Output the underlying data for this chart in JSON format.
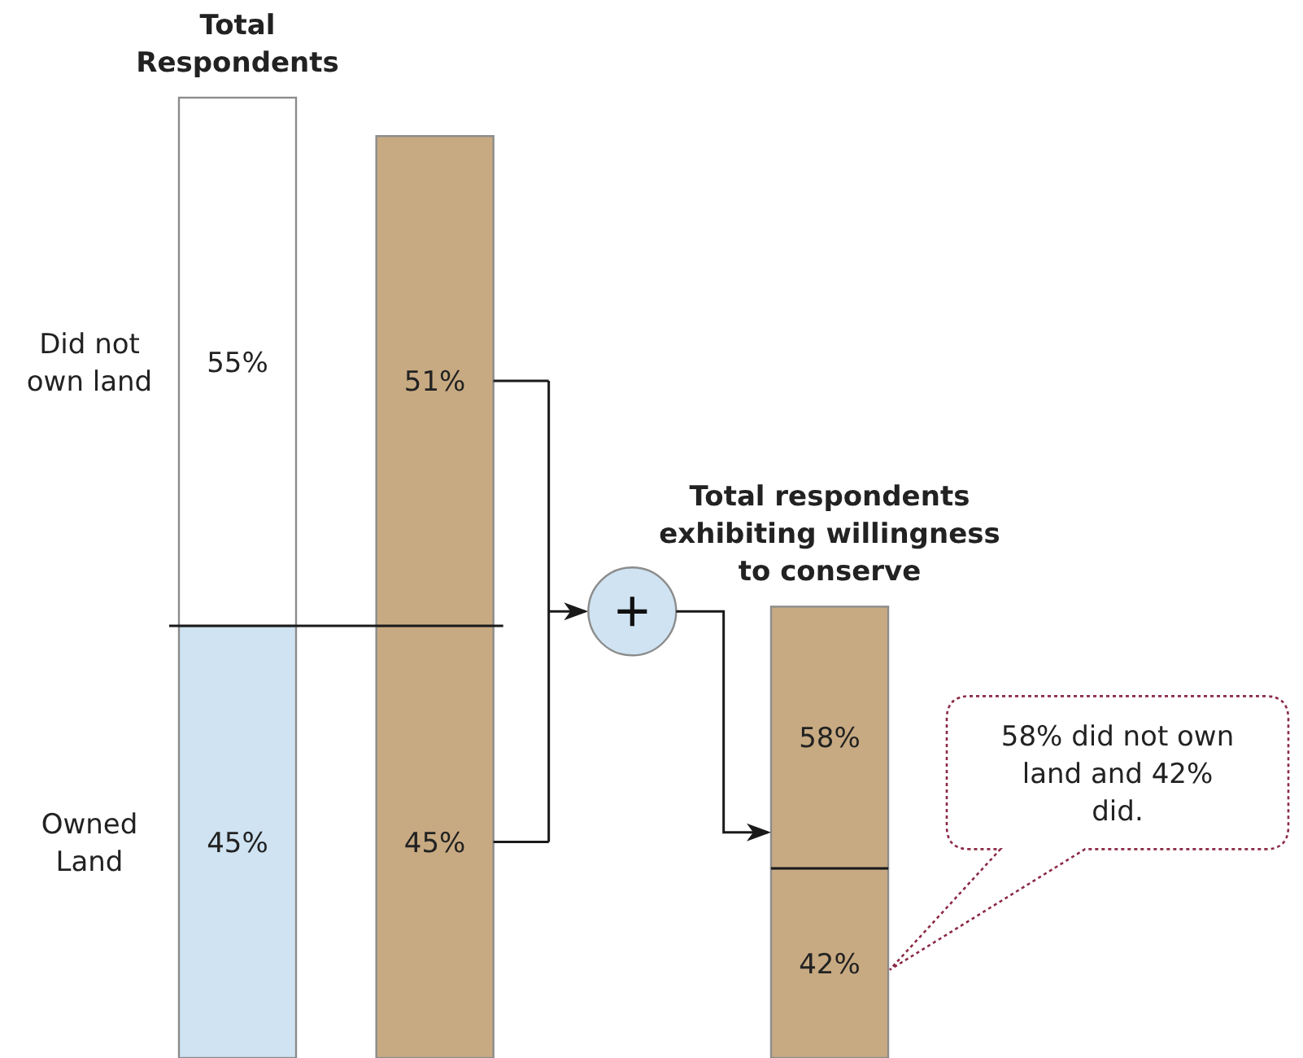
{
  "chart_data": [
    {
      "type": "bar",
      "stacked": true,
      "title": "Total\nRespondents",
      "categories": [
        null,
        null
      ],
      "series": [
        {
          "name": "Owned Land",
          "values": [
            45,
            45
          ],
          "colors": [
            "#cfe3f2",
            "#c8aa82"
          ],
          "value_labels": [
            "45%",
            "45%"
          ]
        },
        {
          "name": "Did not own land",
          "values": [
            55,
            51
          ],
          "colors": [
            "#ffffff",
            "#c8aa82"
          ],
          "value_labels": [
            "55%",
            "51%"
          ]
        }
      ],
      "ref_lines": [
        {
          "axis": "y",
          "value": 45,
          "color": "#1a1a1a"
        }
      ]
    },
    {
      "type": "bar",
      "stacked": true,
      "title": "Total respondents\nexhibiting willingness\nto conserve",
      "categories": [
        null
      ],
      "series": [
        {
          "values": [
            42
          ],
          "color": "#c8aa82",
          "value_labels": [
            "42%"
          ]
        },
        {
          "values": [
            58
          ],
          "color": "#c8aa82",
          "value_labels": [
            "58%"
          ]
        }
      ],
      "annotations": [
        "58% did not own\nland and 42%\ndid."
      ]
    }
  ]
}
